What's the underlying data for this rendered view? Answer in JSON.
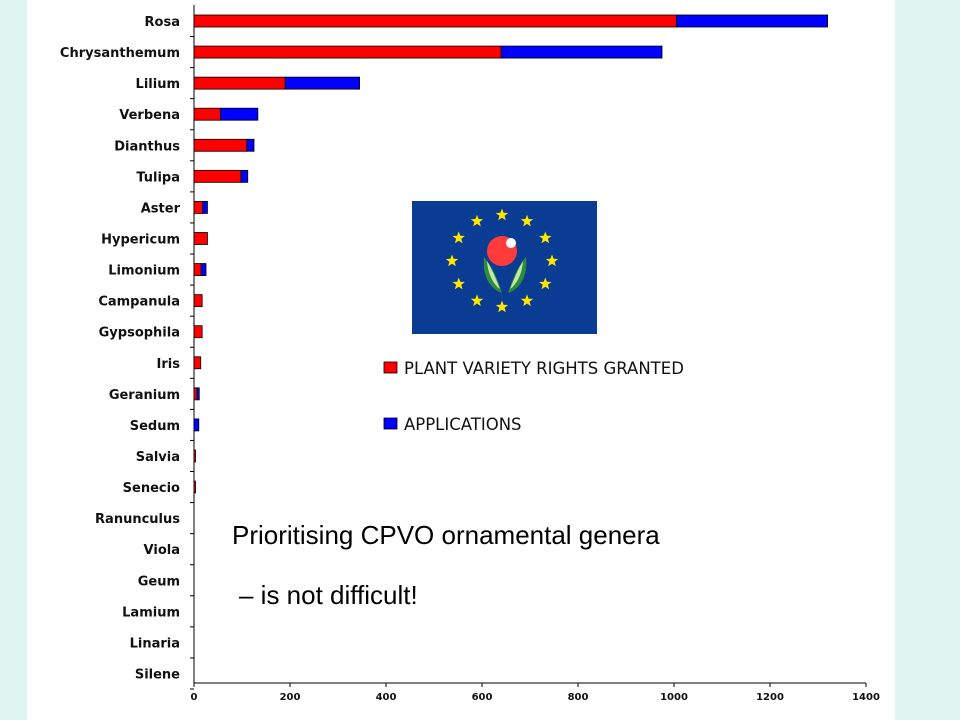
{
  "chart_data": {
    "type": "bar",
    "orientation": "horizontal",
    "stacked": true,
    "categories": [
      "Rosa",
      "Chrysanthemum",
      "Lilium",
      "Verbena",
      "Dianthus",
      "Tulipa",
      "Aster",
      "Hypericum",
      "Limonium",
      "Campanula",
      "Gypsophila",
      "Iris",
      "Geranium",
      "Sedum",
      "Salvia",
      "Senecio",
      "Ranunculus",
      "Viola",
      "Geum",
      "Lamium",
      "Linaria",
      "Silene"
    ],
    "series": [
      {
        "name": "PLANT VARIETY RIGHTS GRANTED",
        "color": "#ff0000",
        "values": [
          1005,
          640,
          190,
          55,
          110,
          98,
          18,
          28,
          15,
          17,
          17,
          14,
          6,
          0,
          2,
          2,
          0,
          0,
          0,
          0,
          0,
          0
        ]
      },
      {
        "name": "APPLICATIONS",
        "color": "#0000ff",
        "values": [
          315,
          335,
          155,
          78,
          15,
          14,
          10,
          0,
          10,
          0,
          0,
          0,
          5,
          10,
          0,
          0,
          0,
          0,
          0,
          0,
          0,
          0
        ]
      }
    ],
    "xlim": [
      0,
      1400
    ],
    "xticks": [
      "0",
      "200",
      "400",
      "600",
      "800",
      "1000",
      "1200",
      "1400"
    ],
    "grid": false,
    "legend": "center-right"
  },
  "caption": {
    "line1": "Prioritising CPVO ornamental genera",
    "line2": "– is not difficult!"
  },
  "emblem": {
    "name": "cpvo-emblem",
    "background": "#0b3c93",
    "star_color": "#ffe600",
    "flower_color": "#ff3b3b",
    "leaf_colors": [
      "#2f8a3a",
      "#d9f4c8"
    ]
  }
}
